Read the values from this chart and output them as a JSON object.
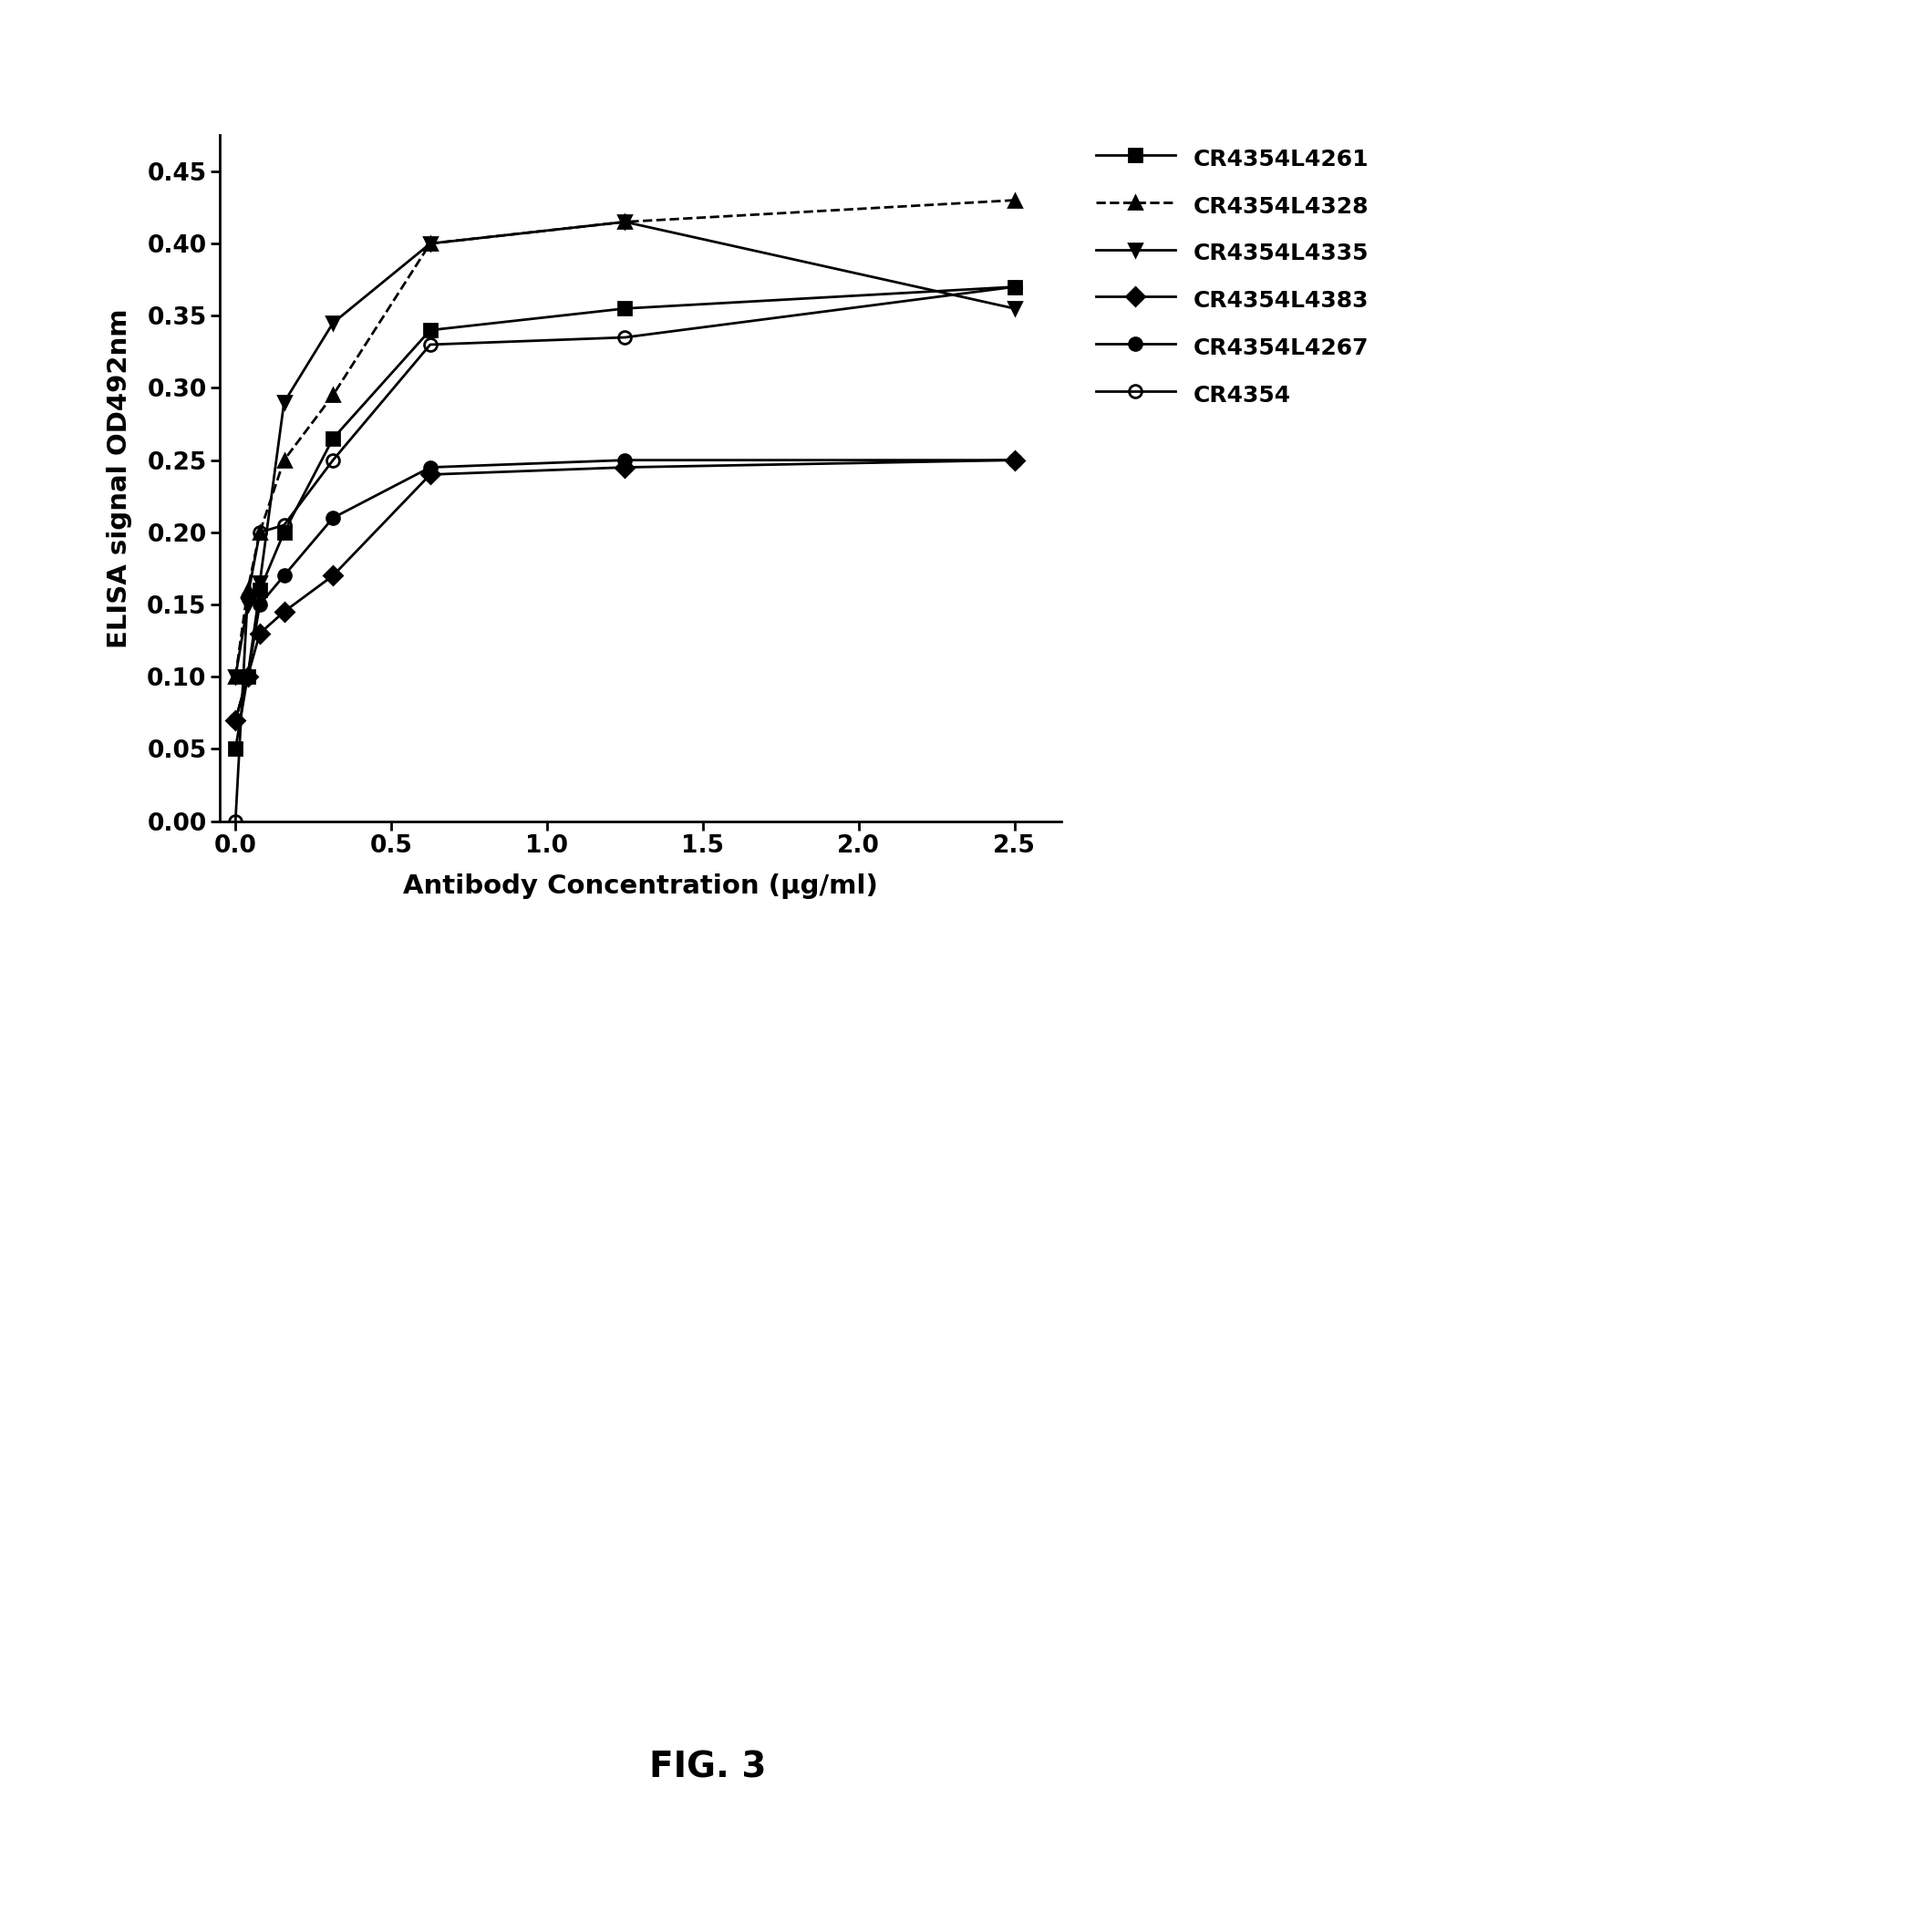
{
  "series": [
    {
      "label": "CR4354L4261",
      "marker": "s",
      "linestyle": "-",
      "color": "#000000",
      "fillstyle": "full",
      "x": [
        0.0,
        0.039,
        0.078,
        0.156,
        0.313,
        0.625,
        1.25,
        2.5
      ],
      "y": [
        0.05,
        0.1,
        0.16,
        0.2,
        0.265,
        0.34,
        0.355,
        0.37
      ]
    },
    {
      "label": "CR4354L4328",
      "marker": "^",
      "linestyle": "--",
      "color": "#000000",
      "fillstyle": "full",
      "x": [
        0.0,
        0.039,
        0.078,
        0.156,
        0.313,
        0.625,
        1.25,
        2.5
      ],
      "y": [
        0.1,
        0.16,
        0.2,
        0.25,
        0.295,
        0.4,
        0.415,
        0.43
      ]
    },
    {
      "label": "CR4354L4335",
      "marker": "v",
      "linestyle": "-",
      "color": "#000000",
      "fillstyle": "full",
      "x": [
        0.0,
        0.039,
        0.078,
        0.156,
        0.313,
        0.625,
        1.25,
        2.5
      ],
      "y": [
        0.1,
        0.15,
        0.165,
        0.29,
        0.345,
        0.4,
        0.415,
        0.355
      ]
    },
    {
      "label": "CR4354L4383",
      "marker": "D",
      "linestyle": "-",
      "color": "#000000",
      "fillstyle": "full",
      "x": [
        0.0,
        0.039,
        0.078,
        0.156,
        0.313,
        0.625,
        1.25,
        2.5
      ],
      "y": [
        0.07,
        0.1,
        0.13,
        0.145,
        0.17,
        0.24,
        0.245,
        0.25
      ]
    },
    {
      "label": "CR4354L4267",
      "marker": "o",
      "linestyle": "-",
      "color": "#000000",
      "fillstyle": "full",
      "x": [
        0.0,
        0.039,
        0.078,
        0.156,
        0.313,
        0.625,
        1.25,
        2.5
      ],
      "y": [
        0.07,
        0.1,
        0.15,
        0.17,
        0.21,
        0.245,
        0.25,
        0.25
      ]
    },
    {
      "label": "CR4354",
      "marker": "o",
      "linestyle": "-",
      "color": "#000000",
      "fillstyle": "none",
      "x": [
        0.0,
        0.039,
        0.078,
        0.156,
        0.313,
        0.625,
        1.25,
        2.5
      ],
      "y": [
        0.0,
        0.155,
        0.2,
        0.205,
        0.25,
        0.33,
        0.335,
        0.37
      ]
    }
  ],
  "xlabel": "Antibody Concentration (μg/ml)",
  "ylabel": "ELISA signal OD492nm",
  "xlim": [
    -0.05,
    2.65
  ],
  "ylim": [
    0.0,
    0.475
  ],
  "yticks": [
    0.0,
    0.05,
    0.1,
    0.15,
    0.2,
    0.25,
    0.3,
    0.35,
    0.4,
    0.45
  ],
  "xticks": [
    0.0,
    0.5,
    1.0,
    1.5,
    2.0,
    2.5
  ],
  "xtick_labels": [
    "0.0",
    "0.5",
    "1.0",
    "1.5",
    "2.0",
    "2.5"
  ],
  "fig_caption": "FIG. 3",
  "background_color": "#ffffff",
  "linewidth": 2.0,
  "markersize": 10
}
